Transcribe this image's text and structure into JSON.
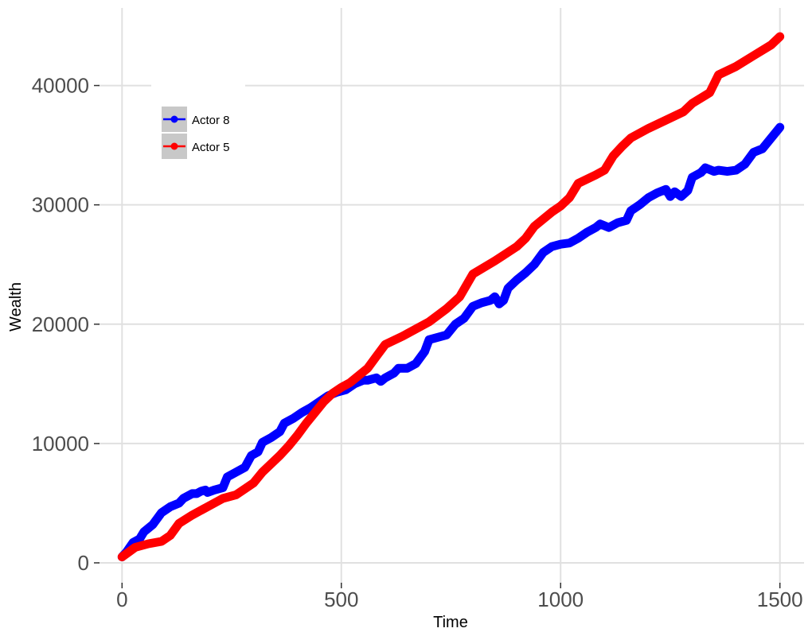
{
  "chart_data": {
    "type": "line",
    "xlabel": "Time",
    "ylabel": "Wealth",
    "xlim": [
      -55,
      1555
    ],
    "ylim": [
      -1800,
      46500
    ],
    "xticks": [
      0,
      500,
      1000,
      1500
    ],
    "yticks": [
      0,
      10000,
      20000,
      30000,
      40000
    ],
    "grid": true,
    "legend_position": "top-left",
    "series": [
      {
        "name": "Actor 8",
        "color": "#0000ff",
        "points": [
          [
            0,
            500
          ],
          [
            10,
            900
          ],
          [
            25,
            1700
          ],
          [
            40,
            2000
          ],
          [
            50,
            2600
          ],
          [
            70,
            3200
          ],
          [
            90,
            4200
          ],
          [
            110,
            4700
          ],
          [
            130,
            5000
          ],
          [
            140,
            5400
          ],
          [
            160,
            5800
          ],
          [
            170,
            5800
          ],
          [
            180,
            6000
          ],
          [
            190,
            6100
          ],
          [
            195,
            5900
          ],
          [
            210,
            6100
          ],
          [
            230,
            6300
          ],
          [
            240,
            7200
          ],
          [
            260,
            7600
          ],
          [
            280,
            8000
          ],
          [
            295,
            9000
          ],
          [
            310,
            9300
          ],
          [
            320,
            10100
          ],
          [
            340,
            10500
          ],
          [
            360,
            11000
          ],
          [
            370,
            11700
          ],
          [
            390,
            12100
          ],
          [
            410,
            12600
          ],
          [
            430,
            13000
          ],
          [
            450,
            13500
          ],
          [
            470,
            14000
          ],
          [
            490,
            14300
          ],
          [
            510,
            14500
          ],
          [
            530,
            15000
          ],
          [
            550,
            15300
          ],
          [
            560,
            15300
          ],
          [
            580,
            15500
          ],
          [
            590,
            15200
          ],
          [
            600,
            15500
          ],
          [
            620,
            15900
          ],
          [
            630,
            16300
          ],
          [
            650,
            16300
          ],
          [
            670,
            16700
          ],
          [
            690,
            17700
          ],
          [
            700,
            18700
          ],
          [
            720,
            18900
          ],
          [
            740,
            19100
          ],
          [
            760,
            20000
          ],
          [
            780,
            20500
          ],
          [
            800,
            21500
          ],
          [
            820,
            21800
          ],
          [
            840,
            22000
          ],
          [
            850,
            22300
          ],
          [
            860,
            21700
          ],
          [
            870,
            22000
          ],
          [
            880,
            23000
          ],
          [
            900,
            23700
          ],
          [
            920,
            24300
          ],
          [
            940,
            25000
          ],
          [
            960,
            26000
          ],
          [
            980,
            26500
          ],
          [
            1000,
            26700
          ],
          [
            1020,
            26800
          ],
          [
            1040,
            27200
          ],
          [
            1060,
            27700
          ],
          [
            1080,
            28100
          ],
          [
            1090,
            28400
          ],
          [
            1110,
            28100
          ],
          [
            1130,
            28500
          ],
          [
            1150,
            28700
          ],
          [
            1160,
            29500
          ],
          [
            1180,
            30000
          ],
          [
            1200,
            30600
          ],
          [
            1220,
            31000
          ],
          [
            1240,
            31300
          ],
          [
            1250,
            30700
          ],
          [
            1260,
            31100
          ],
          [
            1275,
            30700
          ],
          [
            1290,
            31200
          ],
          [
            1300,
            32300
          ],
          [
            1320,
            32700
          ],
          [
            1330,
            33100
          ],
          [
            1350,
            32800
          ],
          [
            1360,
            32900
          ],
          [
            1380,
            32800
          ],
          [
            1400,
            32900
          ],
          [
            1420,
            33400
          ],
          [
            1440,
            34400
          ],
          [
            1460,
            34700
          ],
          [
            1480,
            35600
          ],
          [
            1500,
            36500
          ]
        ]
      },
      {
        "name": "Actor 5",
        "color": "#ff0000",
        "points": [
          [
            0,
            500
          ],
          [
            15,
            900
          ],
          [
            30,
            1300
          ],
          [
            60,
            1600
          ],
          [
            90,
            1800
          ],
          [
            110,
            2300
          ],
          [
            130,
            3300
          ],
          [
            160,
            4000
          ],
          [
            200,
            4800
          ],
          [
            230,
            5400
          ],
          [
            260,
            5700
          ],
          [
            280,
            6200
          ],
          [
            300,
            6700
          ],
          [
            320,
            7600
          ],
          [
            340,
            8300
          ],
          [
            360,
            9000
          ],
          [
            380,
            9800
          ],
          [
            400,
            10700
          ],
          [
            420,
            11700
          ],
          [
            440,
            12600
          ],
          [
            460,
            13500
          ],
          [
            480,
            14200
          ],
          [
            500,
            14700
          ],
          [
            520,
            15100
          ],
          [
            540,
            15700
          ],
          [
            560,
            16300
          ],
          [
            580,
            17300
          ],
          [
            600,
            18300
          ],
          [
            640,
            19000
          ],
          [
            700,
            20200
          ],
          [
            740,
            21300
          ],
          [
            770,
            22300
          ],
          [
            800,
            24200
          ],
          [
            850,
            25300
          ],
          [
            900,
            26500
          ],
          [
            920,
            27200
          ],
          [
            940,
            28200
          ],
          [
            960,
            28800
          ],
          [
            980,
            29400
          ],
          [
            1000,
            29900
          ],
          [
            1020,
            30600
          ],
          [
            1040,
            31800
          ],
          [
            1080,
            32500
          ],
          [
            1100,
            32900
          ],
          [
            1120,
            34100
          ],
          [
            1140,
            34900
          ],
          [
            1160,
            35600
          ],
          [
            1200,
            36400
          ],
          [
            1240,
            37100
          ],
          [
            1280,
            37800
          ],
          [
            1300,
            38500
          ],
          [
            1340,
            39400
          ],
          [
            1360,
            40900
          ],
          [
            1400,
            41600
          ],
          [
            1440,
            42500
          ],
          [
            1480,
            43400
          ],
          [
            1500,
            44100
          ]
        ]
      }
    ]
  }
}
